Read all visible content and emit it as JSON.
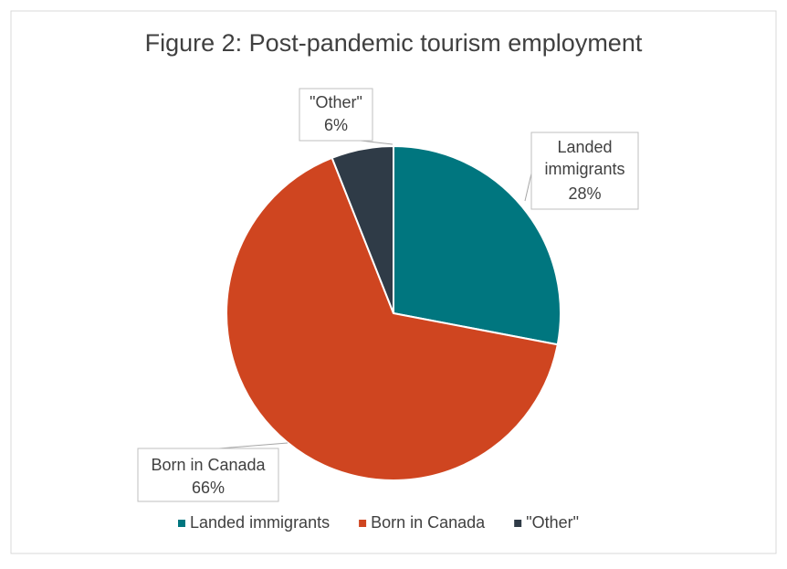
{
  "chart_data": {
    "type": "pie",
    "title": "Figure 2: Post-pandemic tourism employment",
    "categories": [
      "Landed immigrants",
      "Born in Canada",
      "\"Other\""
    ],
    "values": [
      28,
      66,
      6
    ],
    "value_labels": [
      "28%",
      "66%",
      "6%"
    ],
    "colors": [
      "#00767f",
      "#cf4520",
      "#2f3b47"
    ],
    "legend": "bottom"
  }
}
